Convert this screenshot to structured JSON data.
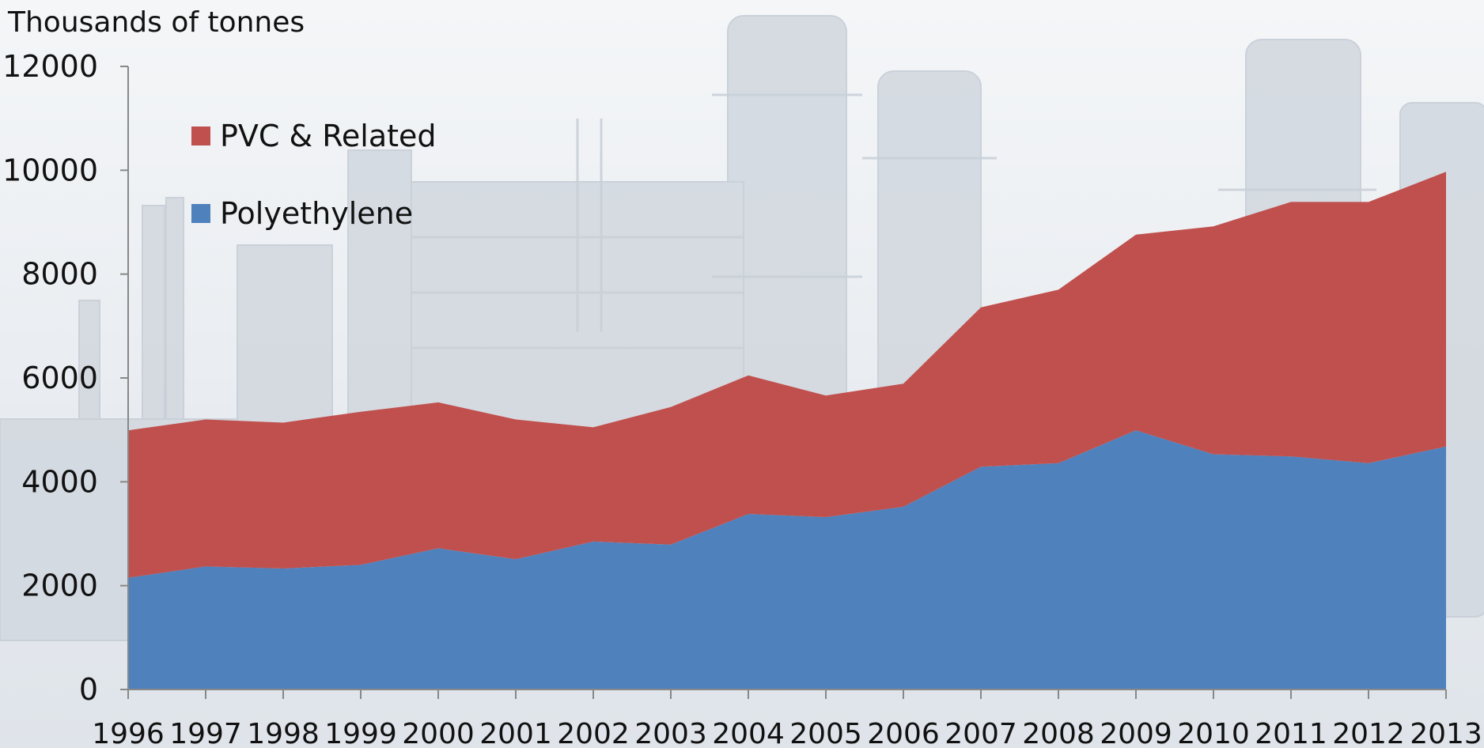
{
  "chart_data": {
    "type": "area",
    "stacked": true,
    "ylabel": "Thousands of tonnes",
    "xlabel": "",
    "ylim": [
      0,
      12000
    ],
    "yticks": [
      "0",
      "2000",
      "4000",
      "6000",
      "8000",
      "10000",
      "12000"
    ],
    "categories": [
      "1996",
      "1997",
      "1998",
      "1999",
      "2000",
      "2001",
      "2002",
      "2003",
      "2004",
      "2005",
      "2006",
      "2007",
      "2008",
      "2009",
      "2010",
      "2011",
      "2012",
      "2013"
    ],
    "series": [
      {
        "name": "Polyethylene",
        "color": "#4f81bd",
        "values": [
          2150,
          2370,
          2330,
          2400,
          2720,
          2510,
          2850,
          2790,
          3380,
          3320,
          3520,
          4290,
          4360,
          4990,
          4530,
          4490,
          4360,
          4680
        ]
      },
      {
        "name": "PVC & Related",
        "color": "#c0504d",
        "values": [
          2840,
          2830,
          2810,
          2950,
          2810,
          2690,
          2200,
          2650,
          2670,
          2340,
          2370,
          3070,
          3340,
          3770,
          4390,
          4900,
          5030,
          5290
        ]
      }
    ],
    "legend": {
      "placement": "top-left",
      "order": [
        "PVC & Related",
        "Polyethylene"
      ]
    },
    "grid": false,
    "background": "industrial plant photo (faded)"
  }
}
